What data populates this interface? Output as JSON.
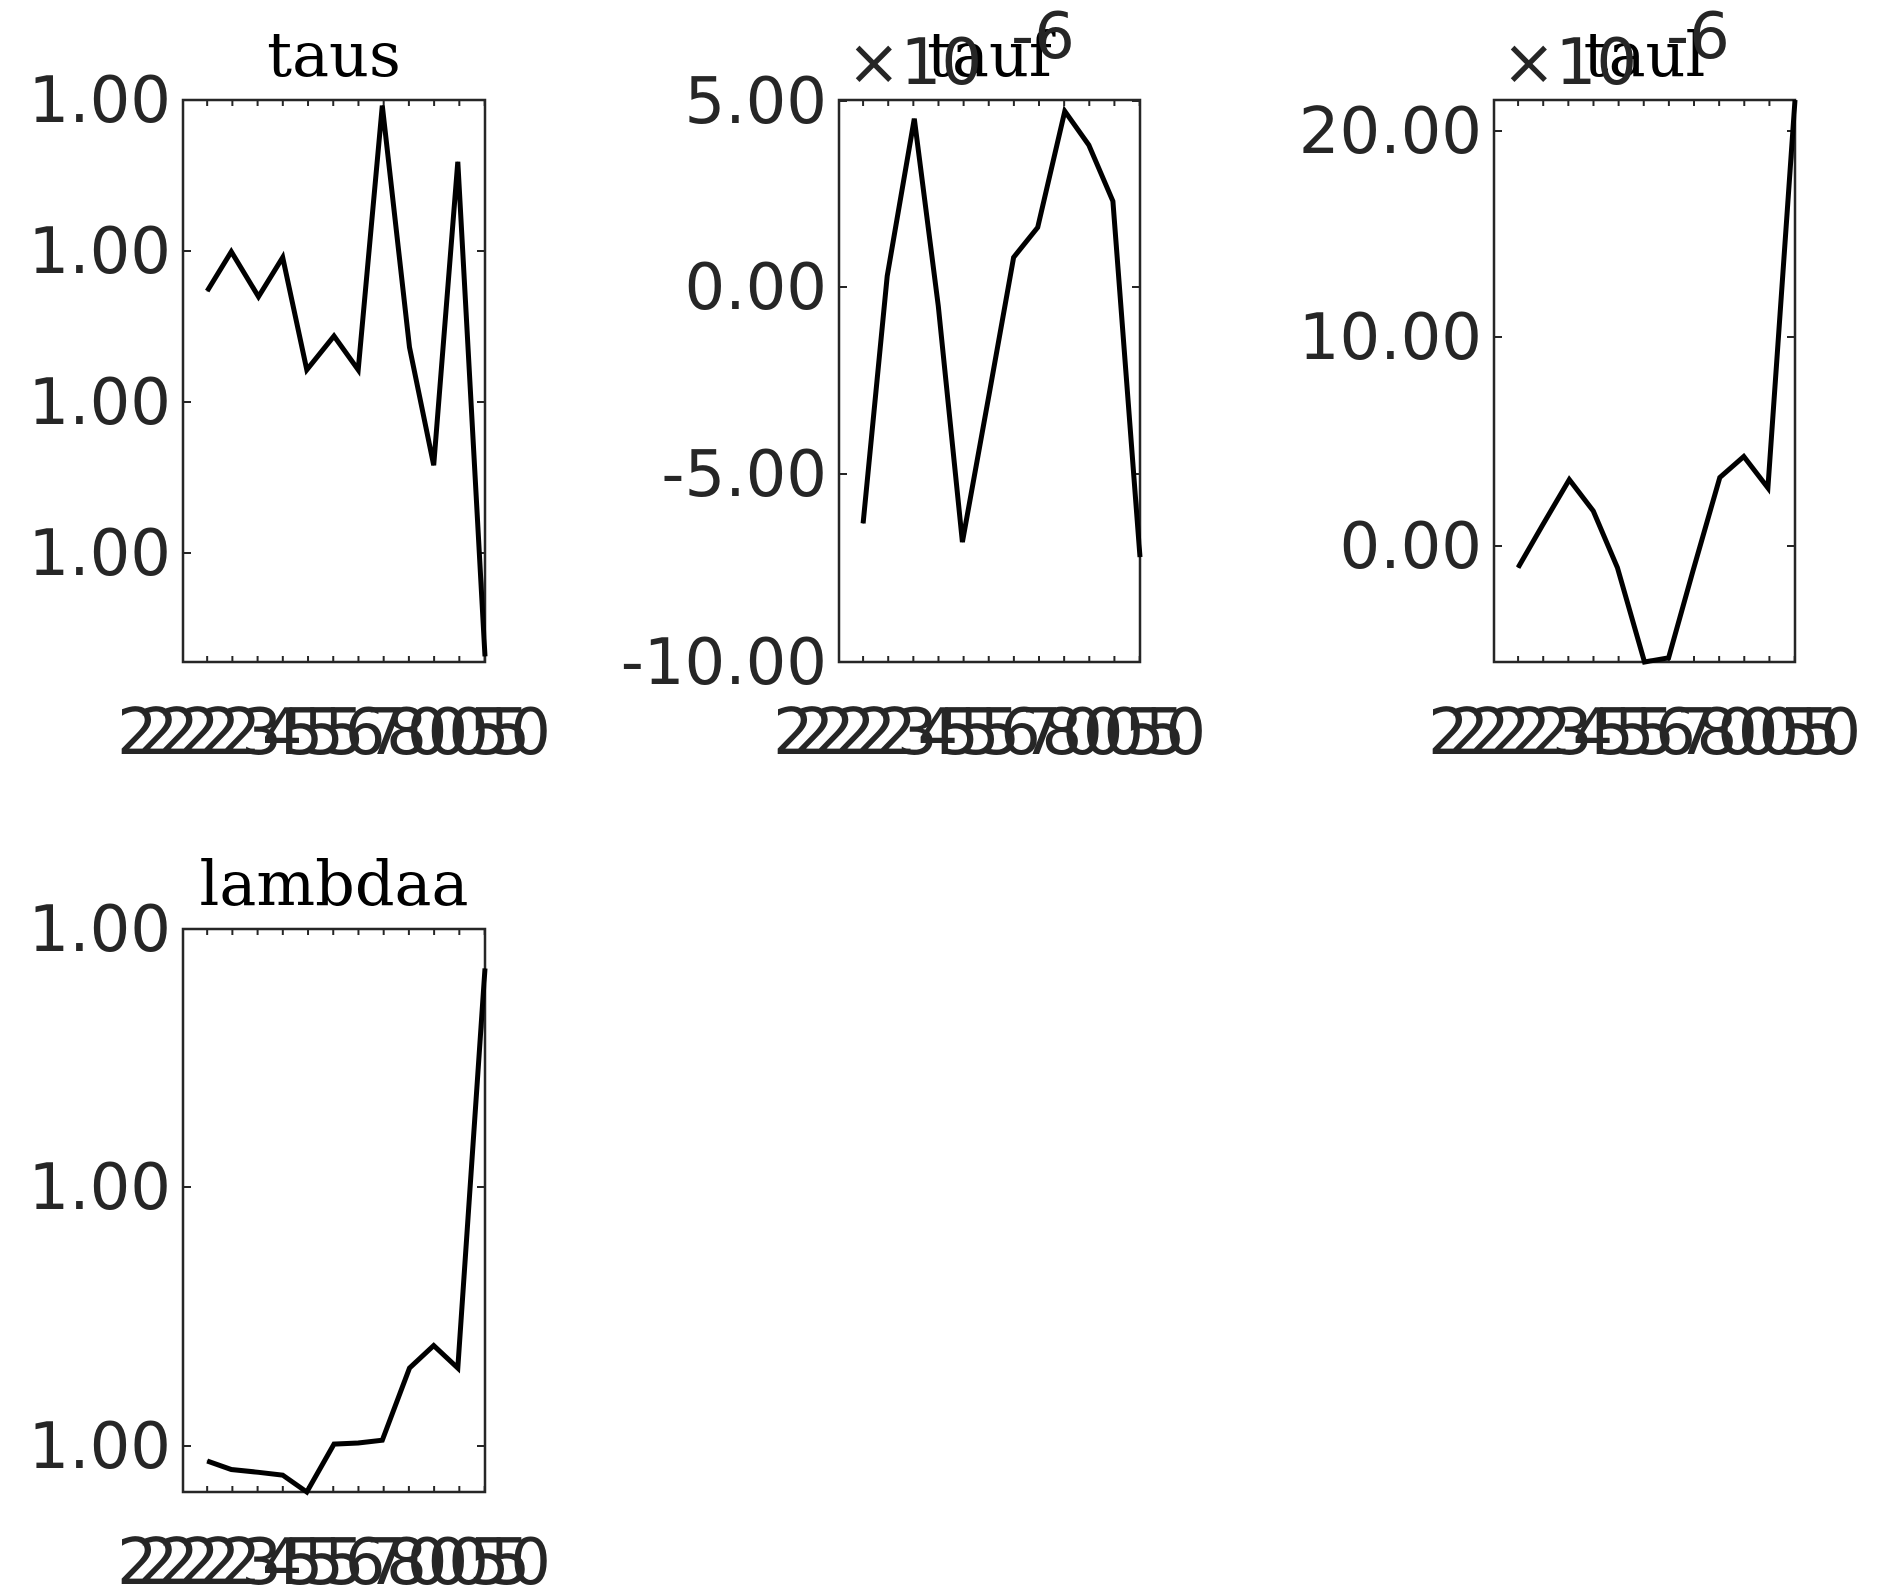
{
  "chart_data": [
    {
      "type": "line",
      "title": "taus",
      "x_tick_labels": [
        "2",
        "2",
        "2",
        "2",
        "2",
        "2",
        "3",
        "4",
        "5",
        "5",
        "5",
        "6",
        "7",
        "8",
        "0",
        "0",
        "0",
        "5",
        "5",
        "0"
      ],
      "y_tick_labels": [
        "1.00",
        "1.00",
        "1.00",
        "1.00"
      ],
      "series": [
        {
          "color": "#000000",
          "values": [
            0.66,
            0.73,
            0.65,
            0.72,
            0.52,
            0.58,
            0.52,
            0.99,
            0.56,
            0.35,
            0.89,
            0.01
          ]
        }
      ],
      "grid": false
    },
    {
      "type": "line",
      "title": "tauf",
      "multiplier_prefix": "×10",
      "multiplier_exponent": "-6",
      "x_tick_labels": [
        "2",
        "2",
        "2",
        "2",
        "2",
        "2",
        "3",
        "4",
        "5",
        "5",
        "5",
        "6",
        "7",
        "8",
        "0",
        "0",
        "0",
        "5",
        "5",
        "0"
      ],
      "y_tick_labels": [
        "5.00",
        "0.00",
        "-5.00",
        "-10.00"
      ],
      "ylim": [
        -10,
        5
      ],
      "series": [
        {
          "color": "#000000",
          "values": [
            -6.3,
            0.3,
            4.5,
            -0.5,
            -6.8,
            -2.8,
            0.8,
            1.6,
            4.7,
            3.8,
            2.3,
            -7.2
          ]
        }
      ],
      "grid": false
    },
    {
      "type": "line",
      "title": "taul",
      "multiplier_prefix": "×10",
      "multiplier_exponent": "-6",
      "x_tick_labels": [
        "2",
        "2",
        "2",
        "2",
        "2",
        "2",
        "3",
        "4",
        "5",
        "5",
        "5",
        "6",
        "7",
        "8",
        "0",
        "0",
        "0",
        "5",
        "5",
        "0"
      ],
      "y_tick_labels": [
        "20.00",
        "10.00",
        "0.00"
      ],
      "ylim": [
        -5.5,
        21.3
      ],
      "series": [
        {
          "color": "#000000",
          "values": [
            -1,
            1,
            3.2,
            1.7,
            -1,
            -5.5,
            -5.3,
            -1.2,
            3.3,
            4.3,
            2.8,
            21.3
          ]
        }
      ],
      "grid": false
    },
    {
      "type": "line",
      "title": "lambdaa",
      "x_tick_labels": [
        "2",
        "2",
        "2",
        "2",
        "2",
        "2",
        "3",
        "4",
        "5",
        "5",
        "5",
        "6",
        "7",
        "8",
        "0",
        "0",
        "0",
        "5",
        "5",
        "0"
      ],
      "y_tick_labels": [
        "1.00",
        "1.00",
        "1.00"
      ],
      "series": [
        {
          "color": "#000000",
          "values": [
            0.055,
            0.04,
            0.035,
            0.03,
            0.0,
            0.085,
            0.087,
            0.092,
            0.22,
            0.26,
            0.22,
            0.93
          ]
        }
      ],
      "grid": false
    }
  ]
}
